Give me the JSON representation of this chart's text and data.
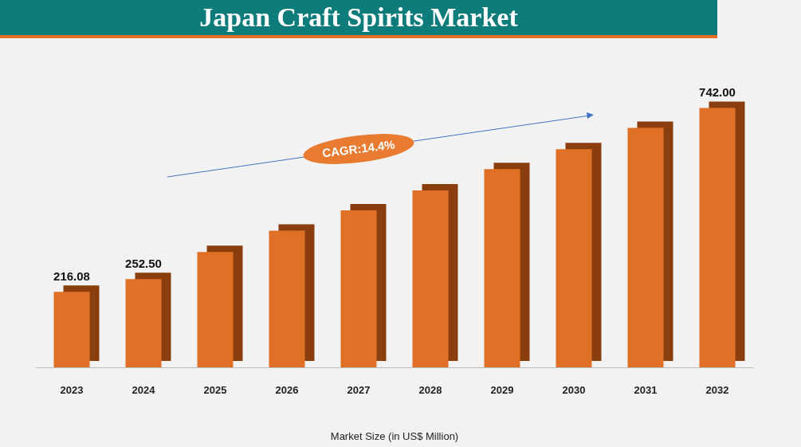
{
  "chart_data": {
    "type": "bar",
    "title": "Japan Craft Spirits Market",
    "xlabel": "Market Size (in US$ Million)",
    "categories": [
      "2023",
      "2024",
      "2025",
      "2026",
      "2027",
      "2028",
      "2029",
      "2030",
      "2031",
      "2032"
    ],
    "values": [
      216.08,
      252.5,
      330,
      391,
      449,
      506,
      567,
      624,
      685,
      742
    ],
    "value_labels": [
      "216.08",
      "252.50",
      null,
      null,
      null,
      null,
      null,
      null,
      null,
      "742.00"
    ],
    "color": "#e07027",
    "annotations": [
      "CAGR:14.4%"
    ]
  }
}
